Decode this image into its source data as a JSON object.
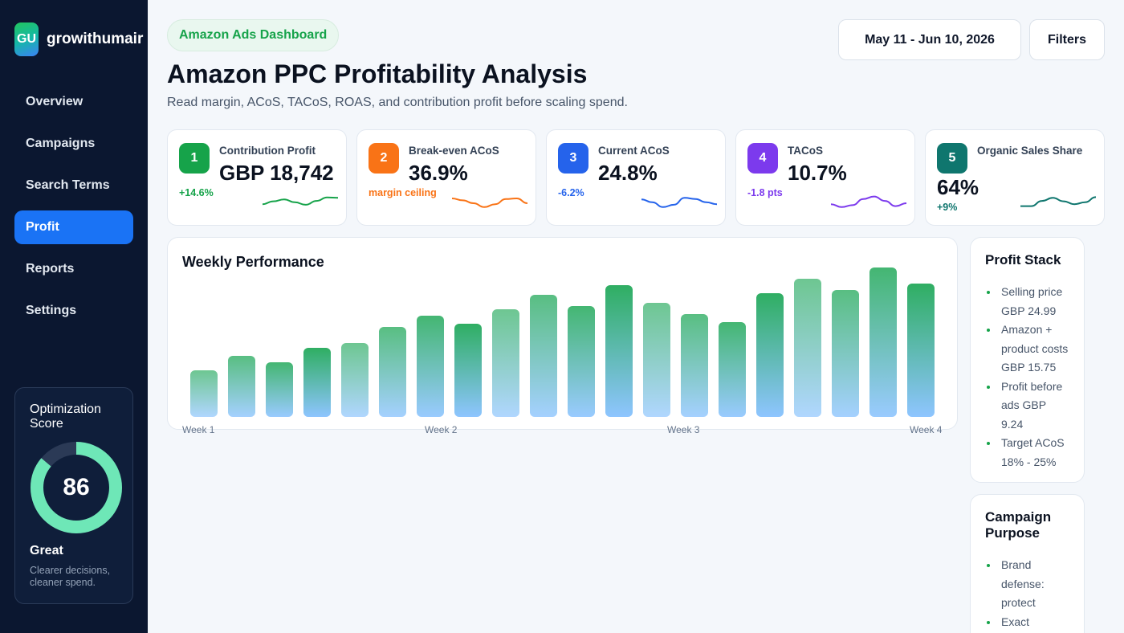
{
  "brand": {
    "logo": "GU",
    "name": "growithumair"
  },
  "nav": [
    "Overview",
    "Campaigns",
    "Search Terms",
    "Profit",
    "Reports",
    "Settings"
  ],
  "nav_active": "Profit",
  "optimization": {
    "title": "Optimization Score",
    "score": 86,
    "score_pct": 86,
    "grade": "Great",
    "description": "Clearer decisions, cleaner spend."
  },
  "header": {
    "badge": "Amazon Ads Dashboard",
    "title": "Amazon PPC Profitability Analysis",
    "subtitle": "Read margin, ACoS, TACoS, ROAS, and contribution profit before scaling spend.",
    "date_range": "May 11 - Jun 10, 2026",
    "filters_label": "Filters"
  },
  "kpis": [
    {
      "num": "1",
      "label": "Contribution Profit",
      "value": "GBP 18,742",
      "delta": "+14.6%",
      "color": "#16a34a",
      "spark": [
        0.45,
        0.6,
        0.7,
        0.55,
        0.42,
        0.62,
        0.8,
        0.78
      ]
    },
    {
      "num": "2",
      "label": "Break-even ACoS",
      "value": "36.9%",
      "delta": "margin ceiling",
      "color": "#f97316",
      "spark": [
        0.75,
        0.65,
        0.5,
        0.3,
        0.45,
        0.72,
        0.75,
        0.5
      ]
    },
    {
      "num": "3",
      "label": "Current ACoS",
      "value": "24.8%",
      "delta": "-6.2%",
      "color": "#2563eb",
      "spark": [
        0.7,
        0.55,
        0.3,
        0.42,
        0.78,
        0.72,
        0.55,
        0.45
      ]
    },
    {
      "num": "4",
      "label": "TACoS",
      "value": "10.7%",
      "delta": "-1.8 pts",
      "color": "#7c3aed",
      "spark": [
        0.45,
        0.3,
        0.4,
        0.72,
        0.85,
        0.62,
        0.35,
        0.5
      ]
    },
    {
      "num": "5",
      "label": "Organic Sales Share",
      "value": "64%",
      "delta": "+9%",
      "color": "#0f766e",
      "spark": [
        0.35,
        0.35,
        0.62,
        0.78,
        0.6,
        0.45,
        0.55,
        0.82
      ]
    }
  ],
  "weekly_performance": {
    "title": "Weekly Performance",
    "chart_data": {
      "type": "bar",
      "values": [
        58,
        76,
        68,
        86,
        92,
        112,
        126,
        116,
        134,
        152,
        138,
        164,
        142,
        128,
        118,
        154,
        172,
        158,
        186,
        166
      ],
      "tick_labels": [
        "Week 1",
        "Week 2",
        "Week 3",
        "Week 4"
      ],
      "gradient": [
        "#2fae62",
        "#8ec5ff"
      ]
    }
  },
  "profit_stack": {
    "title": "Profit Stack",
    "items": [
      "Selling price GBP 24.99",
      "Amazon + product costs GBP 15.75",
      "Profit before ads GBP 9.24",
      "Target ACoS 18% - 25%"
    ]
  },
  "campaign_purpose": {
    "title": "Campaign Purpose",
    "items": [
      "Brand defense: protect",
      "Exact winners:"
    ]
  }
}
